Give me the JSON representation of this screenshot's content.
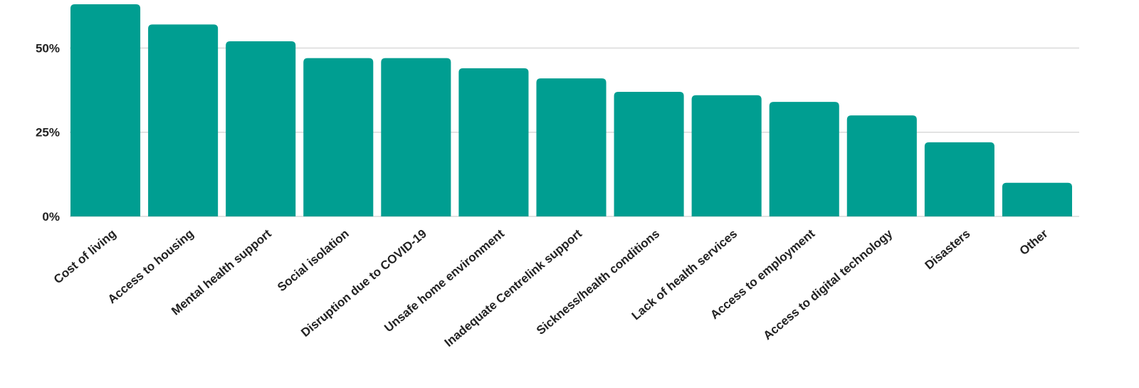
{
  "chart_data": {
    "type": "bar",
    "categories": [
      "Cost of living",
      "Access to housing",
      "Mental health support",
      "Social isolation",
      "Disruption due to COVID-19",
      "Unsafe home environment",
      "Inadequate Centrelink support",
      "Sickness/health conditions",
      "Lack of health services",
      "Access to employment",
      "Access to digital technology",
      "Disasters",
      "Other"
    ],
    "values": [
      63,
      57,
      52,
      47,
      47,
      44,
      41,
      37,
      36,
      34,
      30,
      22,
      10
    ],
    "ylim": [
      0,
      63
    ],
    "yticks": [
      0,
      25,
      50
    ],
    "ytick_labels": [
      "0%",
      "25%",
      "50%"
    ],
    "title": "",
    "xlabel": "",
    "ylabel": "",
    "grid": true,
    "legend": "none",
    "colors": {
      "bar": "#009e91",
      "grid": "#d9d9d9",
      "text": "#222222"
    }
  }
}
